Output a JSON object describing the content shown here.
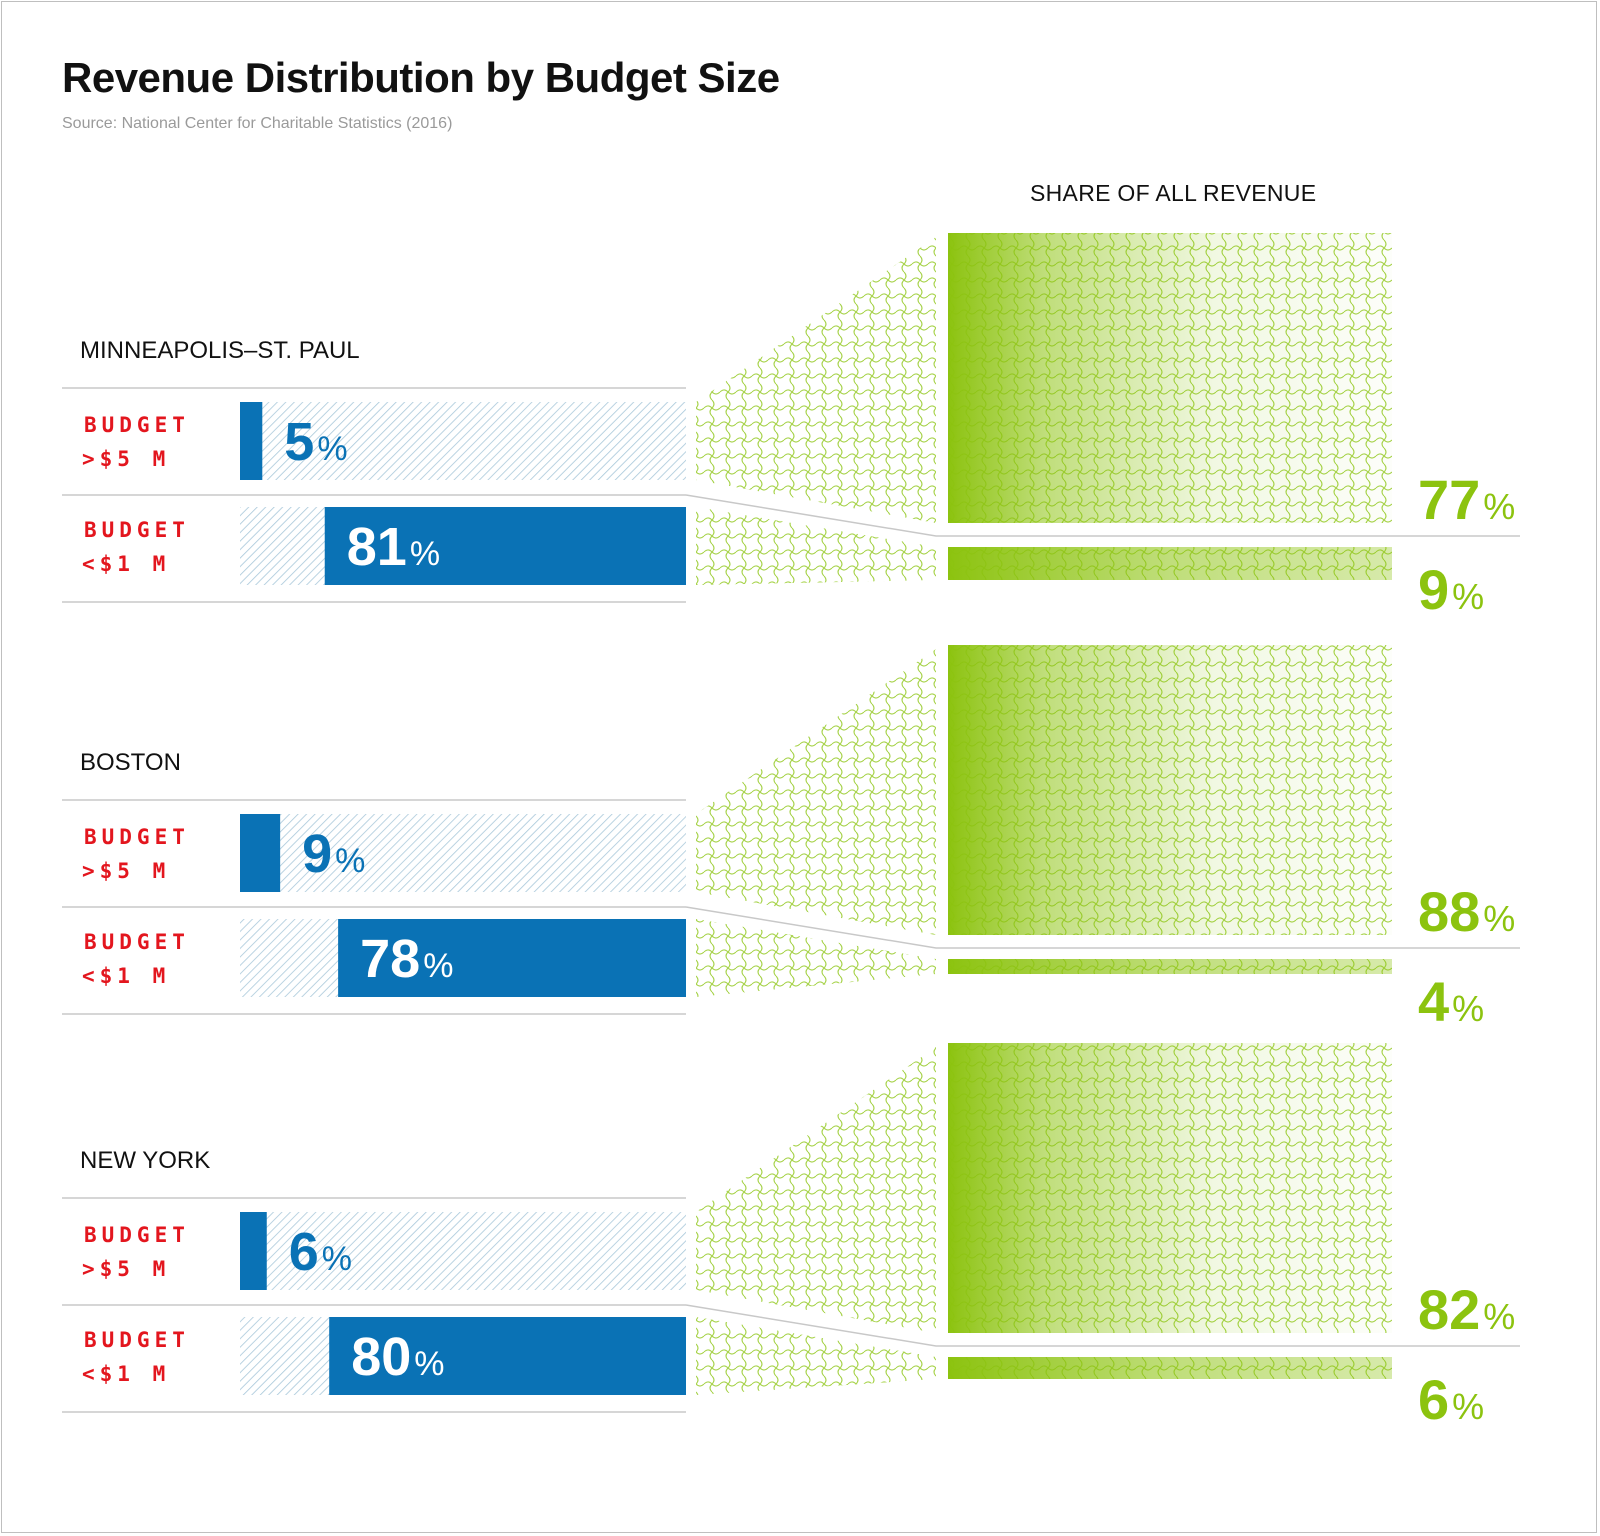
{
  "title": "Revenue Distribution by Budget Size",
  "source": "Source: National Center for Charitable Statistics (2016)",
  "column_header": "SHARE OF ALL REVENUE",
  "colors": {
    "blue": "#0a72b5",
    "blue_hatch": "#a9c8da",
    "green": "#8cc30f",
    "green_light": "#d5ea9d",
    "label_red": "#e3161e",
    "rule_gray": "#c8c8c8"
  },
  "chart_data": {
    "type": "bar",
    "title": "Revenue Distribution by Budget Size",
    "categories": [
      "MINNEAPOLIS–ST. PAUL",
      "BOSTON",
      "NEW YORK"
    ],
    "budget_labels": [
      [
        "BUDGET",
        ">$5 M"
      ],
      [
        "BUDGET",
        "<$1 M"
      ]
    ],
    "percent_sign": "%",
    "series": [
      {
        "name": "BUDGET >$5 M",
        "values": [
          5,
          9,
          6
        ],
        "revenue_share": [
          77,
          88,
          82
        ]
      },
      {
        "name": "BUDGET <$1 M",
        "values": [
          81,
          78,
          80
        ],
        "revenue_share": [
          9,
          4,
          6
        ]
      }
    ],
    "ylim": [
      0,
      100
    ]
  }
}
